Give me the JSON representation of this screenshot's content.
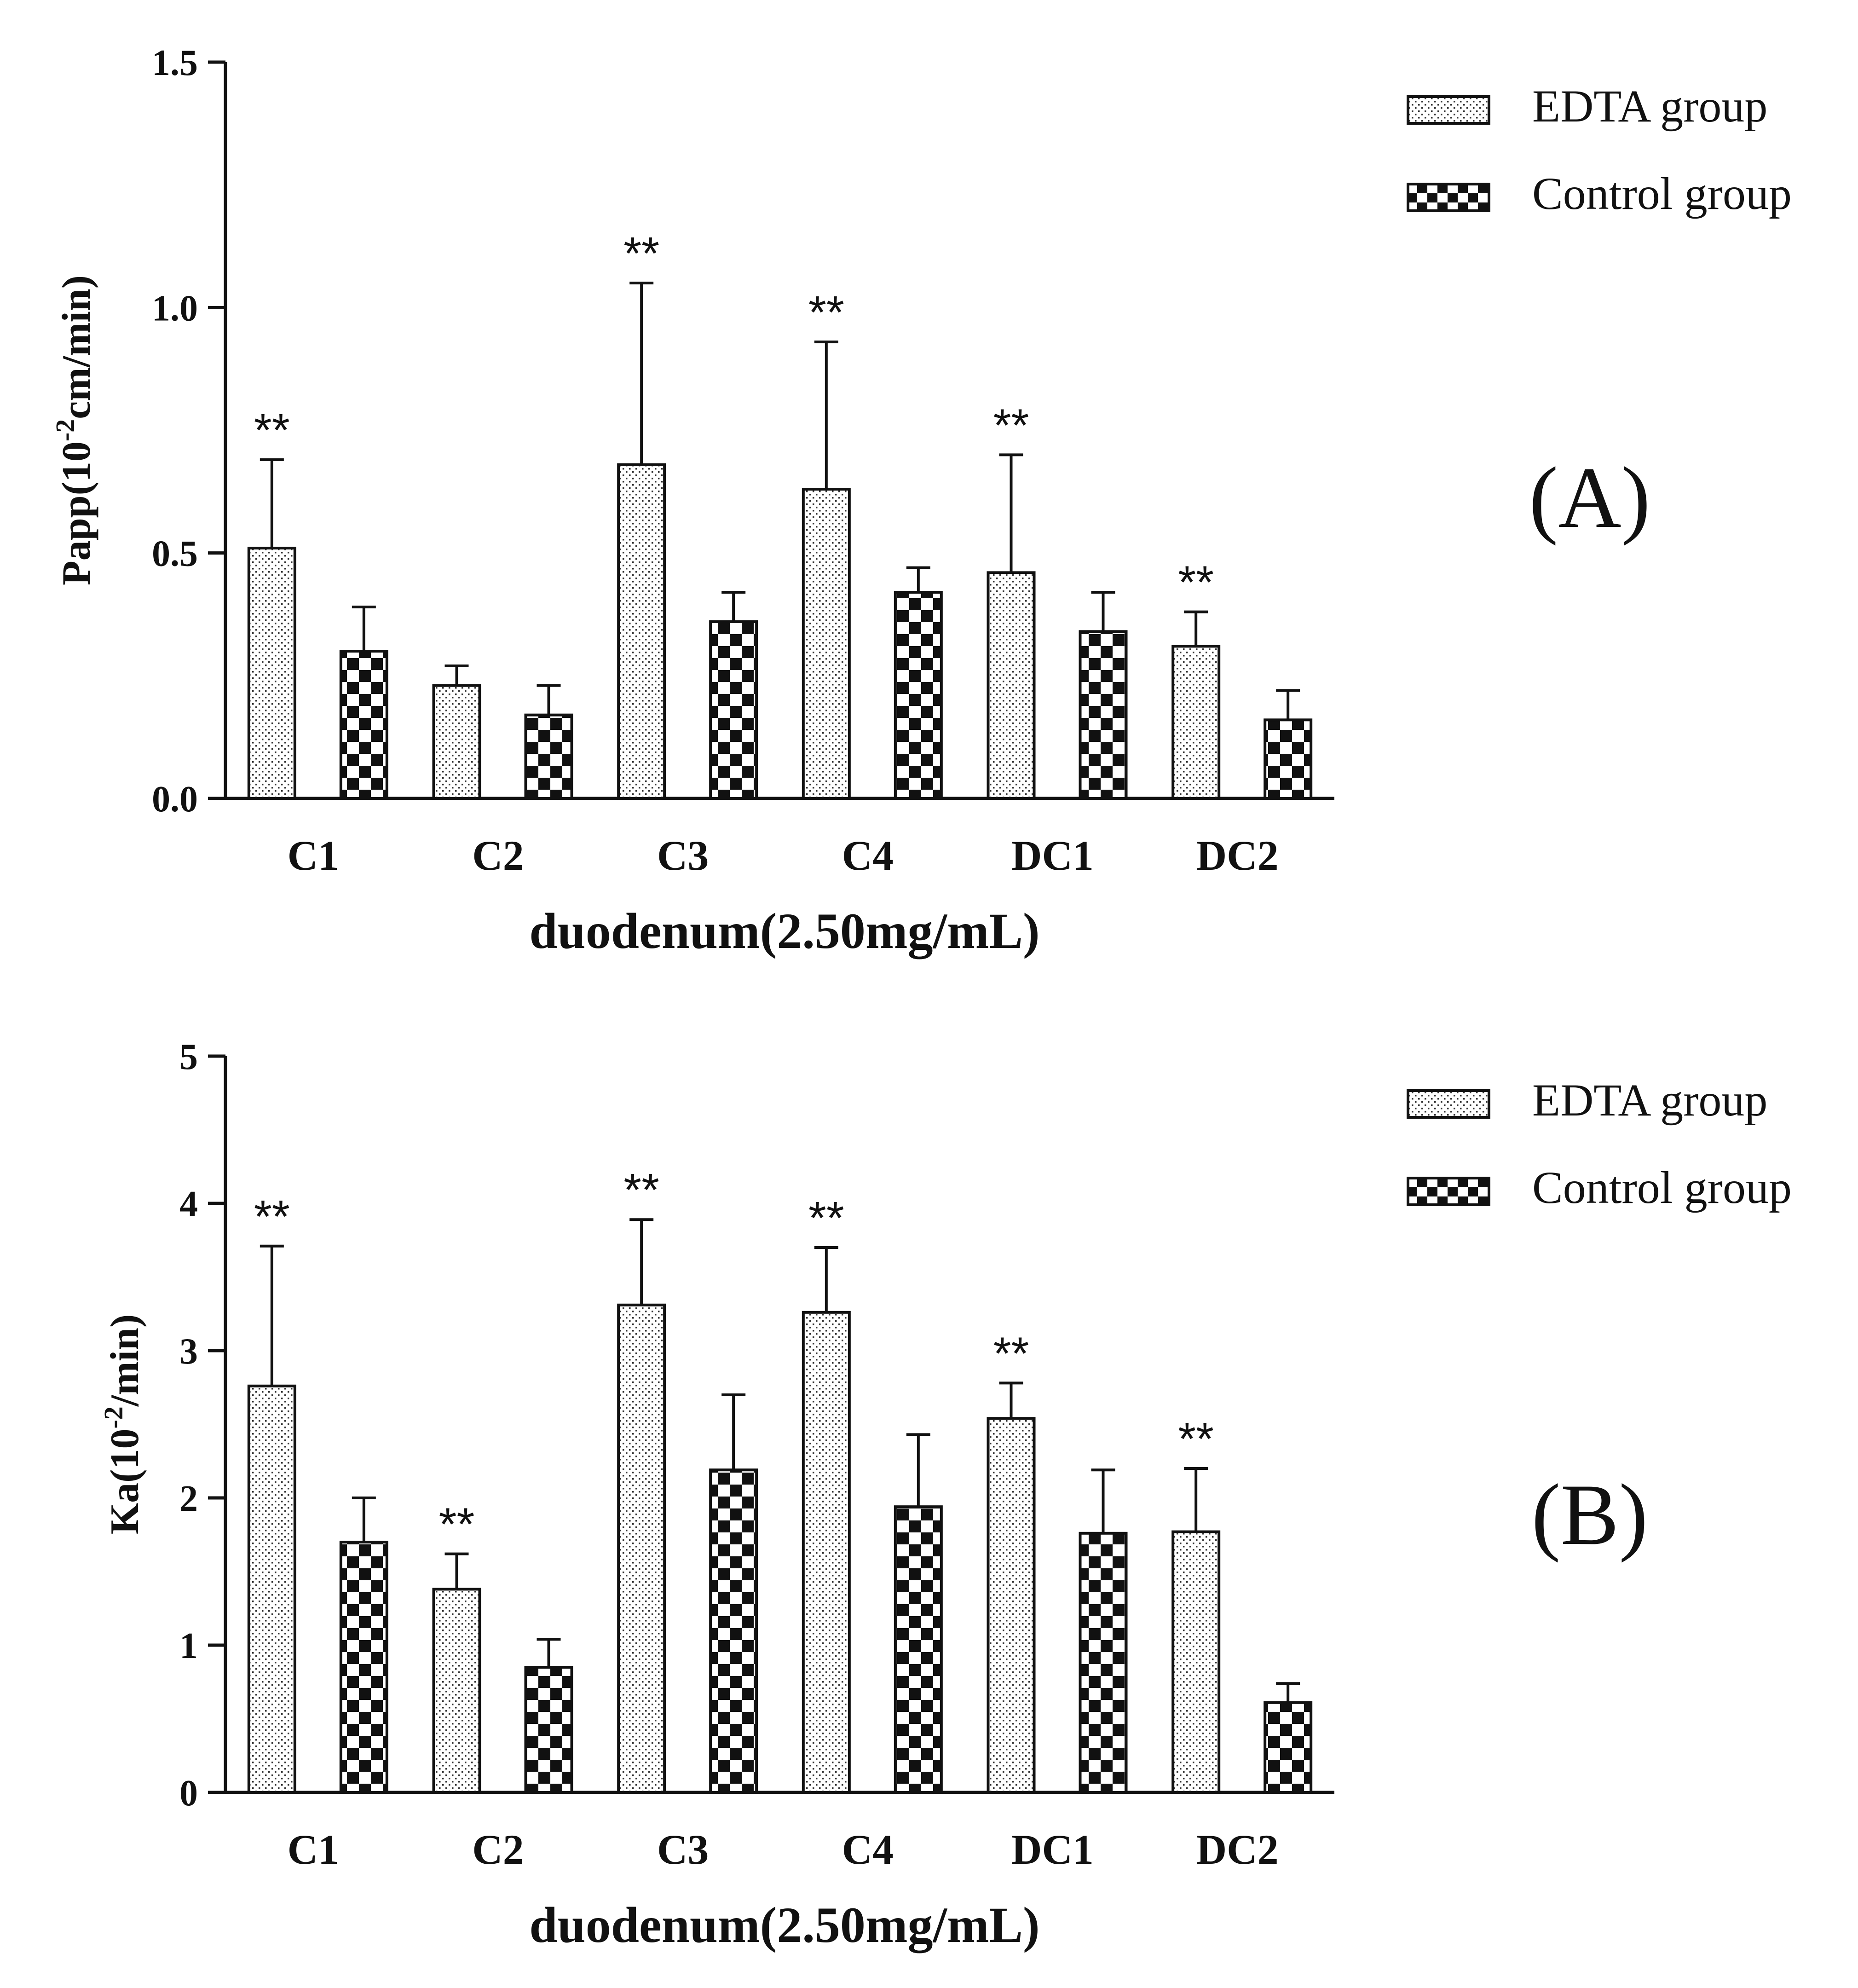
{
  "colors": {
    "ink": "#111111",
    "background": "#ffffff"
  },
  "legend": {
    "edta_label": "EDTA group",
    "control_label": "Control group"
  },
  "chart_data": [
    {
      "panel_label": "(A)",
      "type": "bar",
      "title": "",
      "xlabel": "duodenum(2.50mg/mL)",
      "ylabel_main": "Papp(10",
      "ylabel_sup": "-2",
      "ylabel_tail": "cm/min)",
      "ylim": [
        0,
        1.5
      ],
      "yticks": [
        "0.0",
        "0.5",
        "1.0",
        "1.5"
      ],
      "ytick_values": [
        0,
        0.5,
        1.0,
        1.5
      ],
      "categories": [
        "C1",
        "C2",
        "C3",
        "C4",
        "DC1",
        "DC2"
      ],
      "series": [
        {
          "name": "EDTA group",
          "values": [
            0.51,
            0.23,
            0.68,
            0.63,
            0.46,
            0.31
          ],
          "errors": [
            0.18,
            0.04,
            0.37,
            0.3,
            0.24,
            0.07
          ]
        },
        {
          "name": "Control group",
          "values": [
            0.3,
            0.17,
            0.36,
            0.42,
            0.34,
            0.16
          ],
          "errors": [
            0.09,
            0.06,
            0.06,
            0.05,
            0.08,
            0.06
          ]
        }
      ],
      "significance": [
        "**",
        "",
        "**",
        "**",
        "**",
        "**"
      ]
    },
    {
      "panel_label": "(B)",
      "type": "bar",
      "title": "",
      "xlabel": "duodenum(2.50mg/mL)",
      "ylabel_main": "Ka(10",
      "ylabel_sup": "-2",
      "ylabel_tail": "/min)",
      "ylim": [
        0,
        5
      ],
      "yticks": [
        "0",
        "1",
        "2",
        "3",
        "4",
        "5"
      ],
      "ytick_values": [
        0,
        1,
        2,
        3,
        4,
        5
      ],
      "categories": [
        "C1",
        "C2",
        "C3",
        "C4",
        "DC1",
        "DC2"
      ],
      "series": [
        {
          "name": "EDTA group",
          "values": [
            2.76,
            1.38,
            3.31,
            3.26,
            2.54,
            1.77
          ],
          "errors": [
            0.95,
            0.24,
            0.58,
            0.44,
            0.24,
            0.43
          ]
        },
        {
          "name": "Control group",
          "values": [
            1.7,
            0.85,
            2.19,
            1.94,
            1.76,
            0.61
          ],
          "errors": [
            0.3,
            0.19,
            0.51,
            0.49,
            0.43,
            0.13
          ]
        }
      ],
      "significance": [
        "**",
        "**",
        "**",
        "**",
        "**",
        "**"
      ]
    }
  ]
}
